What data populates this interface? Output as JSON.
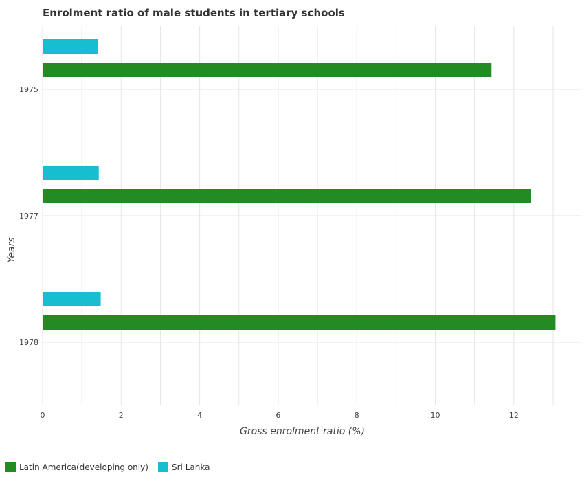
{
  "chart_data": {
    "type": "bar",
    "orientation": "horizontal",
    "title": "Enrolment ratio of male students in tertiary schools",
    "xlabel": "Gross enrolment ratio (%)",
    "ylabel": "Years",
    "categories": [
      "1975",
      "1977",
      "1978"
    ],
    "series": [
      {
        "name": "Latin America(developing only)",
        "color": "#228B22",
        "values": [
          11.43,
          12.44,
          13.06
        ]
      },
      {
        "name": "Sri Lanka",
        "color": "#17BECF",
        "values": [
          1.41,
          1.43,
          1.48
        ]
      }
    ],
    "xlim": [
      0,
      13.7
    ],
    "xticks": [
      0,
      2,
      4,
      6,
      8,
      10,
      12
    ],
    "grid": true,
    "legend_position": "bottom-left"
  }
}
